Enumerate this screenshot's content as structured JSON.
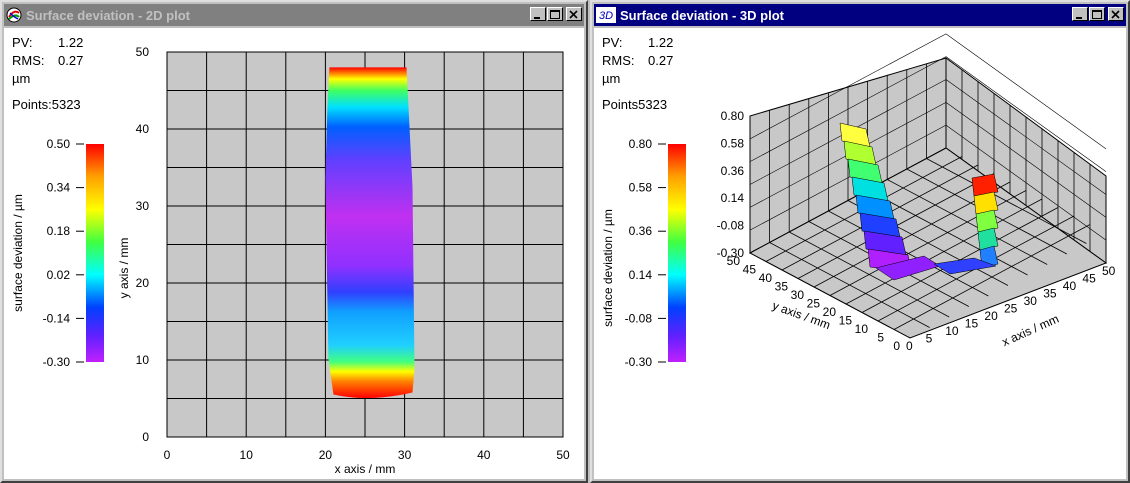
{
  "window_2d": {
    "title": "Surface deviation - 2D plot",
    "pv_label": "PV:",
    "pv_value": "1.22",
    "rms_label": "RMS:",
    "rms_value": "0.27",
    "unit": "µm",
    "points": "Points:5323"
  },
  "window_3d": {
    "title": "Surface deviation - 3D plot",
    "icon_label": "3D",
    "pv_label": "PV:",
    "pv_value": "1.22",
    "rms_label": "RMS:",
    "rms_value": "0.27",
    "unit": "µm",
    "points": "Points5323"
  },
  "colors": {
    "active_title": "#000080",
    "inactive_title": "#808080",
    "plot_bg": "#c8c8c8",
    "grid": "#000000"
  },
  "chart_data": [
    {
      "type": "heatmap",
      "title": "Surface deviation - 2D plot",
      "xlabel": "x axis / mm",
      "ylabel": "y axis / mm",
      "xlim": [
        0,
        50
      ],
      "ylim": [
        0,
        50
      ],
      "x_ticks": [
        "0",
        "10",
        "20",
        "30",
        "40",
        "50"
      ],
      "y_ticks": [
        "0",
        "10",
        "20",
        "30",
        "40",
        "50"
      ],
      "grid": true,
      "data_region": {
        "x": [
          20,
          31
        ],
        "y": [
          5,
          48
        ]
      },
      "colorbar": {
        "label": "surface deviation / µm",
        "ticks": [
          "0.50",
          "0.34",
          "0.18",
          "0.02",
          "-0.14",
          "-0.30"
        ],
        "range": [
          -0.3,
          0.5
        ]
      },
      "profile_along_y": {
        "y": [
          5,
          7,
          9,
          12,
          15,
          18,
          21,
          24,
          27,
          30,
          33,
          36,
          39,
          42,
          45,
          48
        ],
        "deviation": [
          0.5,
          0.3,
          0.1,
          -0.02,
          -0.08,
          -0.14,
          -0.2,
          -0.26,
          -0.28,
          -0.26,
          -0.18,
          -0.08,
          0.02,
          0.15,
          0.3,
          0.5
        ]
      }
    },
    {
      "type": "surface",
      "title": "Surface deviation - 3D plot",
      "xlabel": "x axis / mm",
      "ylabel": "y axis / mm",
      "z_ticks": [
        "0.80",
        "0.58",
        "0.36",
        "0.14",
        "-0.08",
        "-0.30"
      ],
      "x_ticks": [
        "0",
        "5",
        "10",
        "15",
        "20",
        "25",
        "30",
        "35",
        "40",
        "45",
        "50"
      ],
      "y_ticks": [
        "0",
        "5",
        "10",
        "15",
        "20",
        "25",
        "30",
        "35",
        "40",
        "45",
        "50"
      ],
      "grid": true,
      "colorbar": {
        "label": "surface deviation / µm",
        "ticks": [
          "0.80",
          "0.58",
          "0.36",
          "0.14",
          "-0.08",
          "-0.30"
        ],
        "range": [
          -0.3,
          0.8
        ]
      }
    }
  ]
}
